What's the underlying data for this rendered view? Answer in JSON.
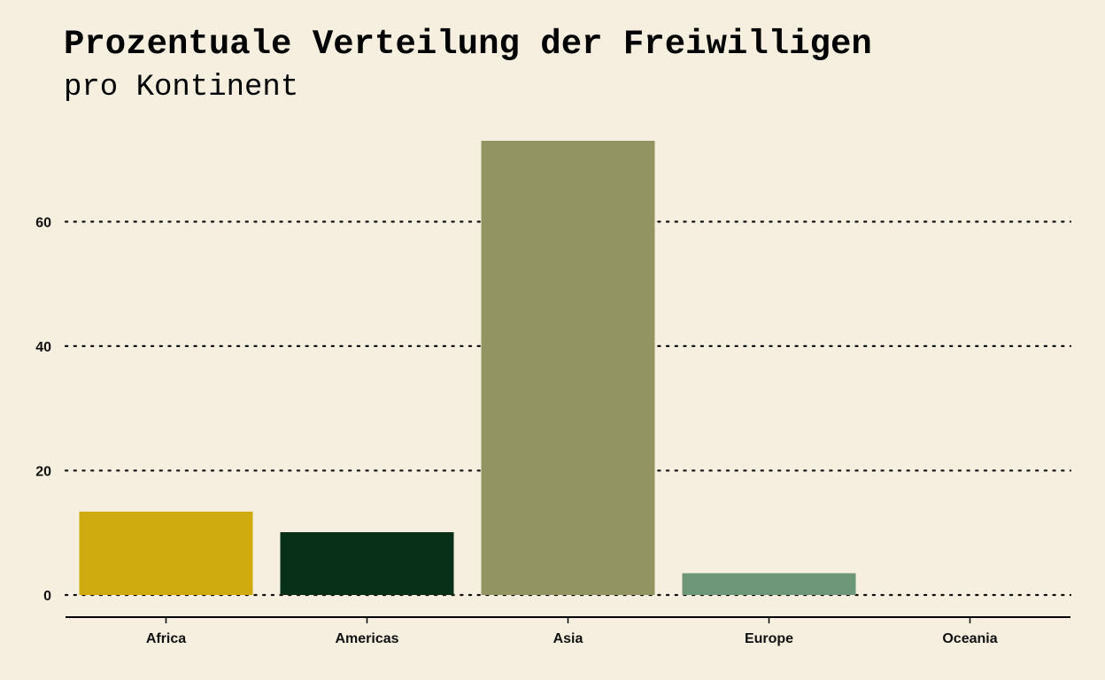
{
  "chart_data": {
    "type": "bar",
    "title": "Prozentuale Verteilung der Freiwilligen",
    "subtitle": "pro Kontinent",
    "xlabel": "",
    "ylabel": "",
    "categories": [
      "Africa",
      "Americas",
      "Asia",
      "Europe",
      "Oceania"
    ],
    "values": [
      13.4,
      10.1,
      73.0,
      3.5,
      0.0
    ],
    "colors": [
      "#cfab0f",
      "#083018",
      "#929561",
      "#6d9778",
      "#f6efdf"
    ],
    "ylim": [
      0,
      73
    ],
    "yticks": [
      0,
      20,
      40,
      60
    ],
    "grid": "horizontal-dotted",
    "legend": "none"
  }
}
